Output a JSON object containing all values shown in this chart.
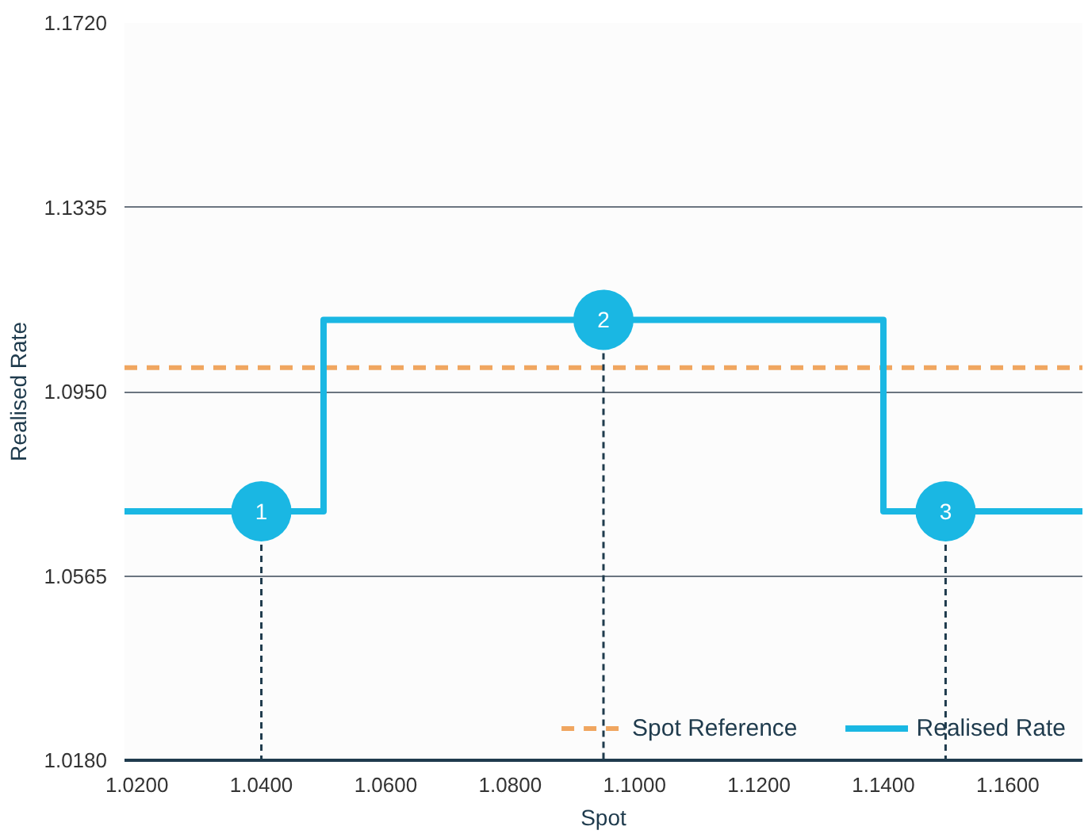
{
  "chart_data": {
    "type": "line",
    "xlabel": "Spot",
    "ylabel": "Realised Rate",
    "xlim": [
      1.018,
      1.172
    ],
    "ylim": [
      1.018,
      1.172
    ],
    "xticks": [
      {
        "value": 1.02,
        "label": "1.0200"
      },
      {
        "value": 1.04,
        "label": "1.0400"
      },
      {
        "value": 1.06,
        "label": "1.0600"
      },
      {
        "value": 1.08,
        "label": "1.0800"
      },
      {
        "value": 1.1,
        "label": "1.1000"
      },
      {
        "value": 1.12,
        "label": "1.1200"
      },
      {
        "value": 1.14,
        "label": "1.1400"
      },
      {
        "value": 1.16,
        "label": "1.1600"
      }
    ],
    "yticks": [
      {
        "value": 1.018,
        "label": "1.0180"
      },
      {
        "value": 1.0565,
        "label": "1.0565"
      },
      {
        "value": 1.095,
        "label": "1.0950"
      },
      {
        "value": 1.1335,
        "label": "1.1335"
      },
      {
        "value": 1.172,
        "label": "1.1720"
      }
    ],
    "grid": "y",
    "legend": "bottom right",
    "marker": "none",
    "series": [
      {
        "name": "Spot Reference",
        "color": "#f0a660",
        "line_style": "dashed",
        "x": [
          1.018,
          1.172
        ],
        "values": [
          1.1,
          1.1
        ]
      },
      {
        "type": "step",
        "name": "Realised Rate",
        "color": "#1ab7e3",
        "line_style": "solid",
        "x": [
          1.018,
          1.05,
          1.14,
          1.172
        ],
        "values": [
          1.07,
          1.11,
          1.07,
          1.07
        ]
      }
    ],
    "annotations": [
      {
        "text": "1",
        "x": 1.04,
        "y": 1.07
      },
      {
        "text": "2",
        "x": 1.095,
        "y": 1.11
      },
      {
        "text": "3",
        "x": 1.15,
        "y": 1.07
      }
    ]
  }
}
